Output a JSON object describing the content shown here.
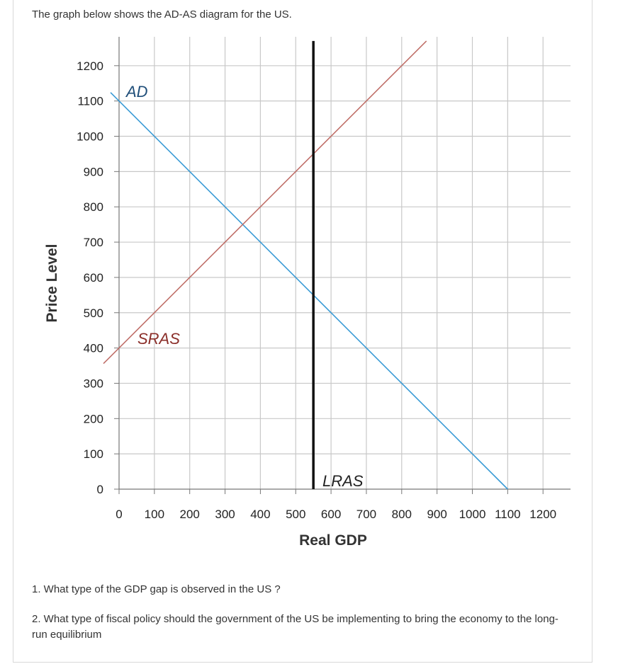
{
  "intro": "The graph below shows the AD-AS diagram for the US.",
  "questions": [
    "1. What type of the GDP gap is observed in the US ?",
    "2. What type of fiscal policy should the government of the US be implementing to bring the economy to the long-run equilibrium"
  ],
  "colors": {
    "ad": "#3a9bd6",
    "sras": "#c0706a",
    "lras": "#111111",
    "grid": "#c8c8c8"
  },
  "chart_data": {
    "type": "line",
    "xlabel": "Real GDP",
    "ylabel": "Price Level",
    "xlim": [
      0,
      1200
    ],
    "ylim": [
      0,
      1200
    ],
    "xticks": [
      0,
      100,
      200,
      300,
      400,
      500,
      600,
      700,
      800,
      900,
      1000,
      1100,
      1200
    ],
    "yticks": [
      0,
      100,
      200,
      300,
      400,
      500,
      600,
      700,
      800,
      900,
      1000,
      1100,
      1200
    ],
    "grid": true,
    "series": [
      {
        "name": "AD",
        "x": [
          0,
          1100
        ],
        "y": [
          1100,
          0
        ]
      },
      {
        "name": "SRAS",
        "x": [
          0,
          870
        ],
        "y": [
          400,
          1270
        ]
      },
      {
        "name": "LRAS",
        "x": [
          550,
          550
        ],
        "y": [
          0,
          1270
        ]
      }
    ]
  }
}
